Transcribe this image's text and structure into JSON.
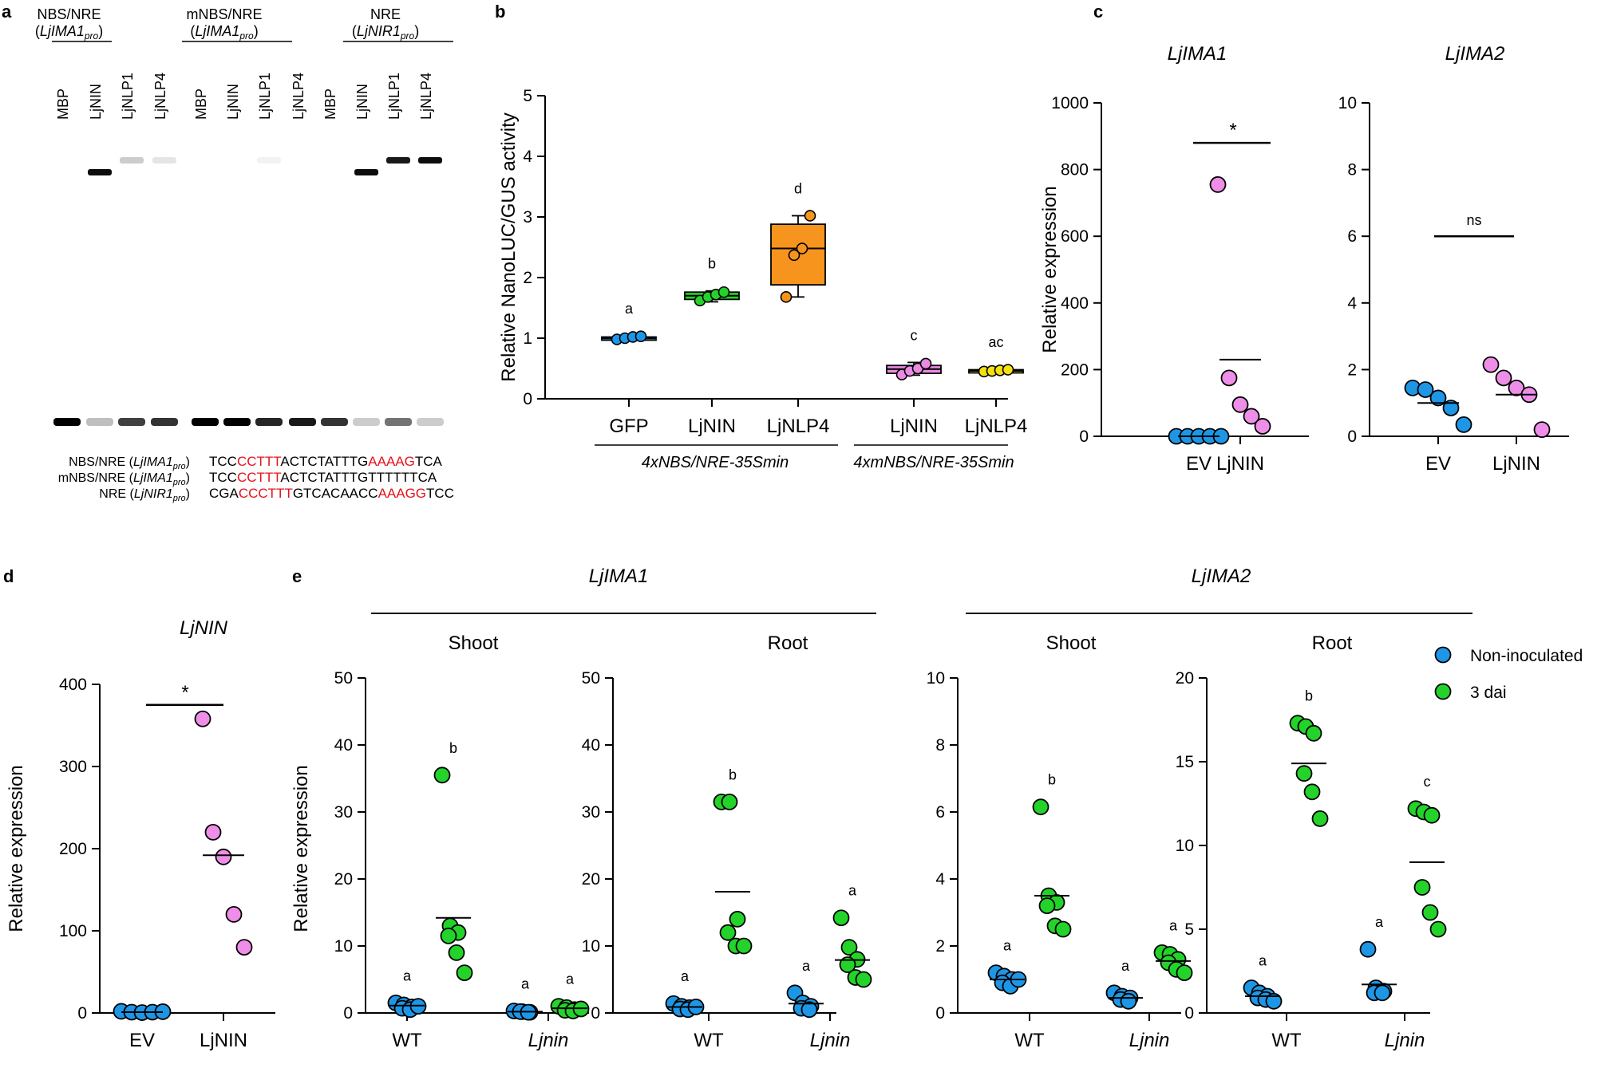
{
  "colors": {
    "noninoc": "#1e96e6",
    "dai": "#24d32a",
    "gfp": "#1e96e6",
    "ljnin": "#24d32a",
    "ljnlp4": "#f7941d",
    "m_ljnin": "#ea8ae3",
    "m_ljnlp4": "#f5e10f",
    "ev": "#1e96e6",
    "lj": "#ef8ee8",
    "red": "#e5131b"
  },
  "panel_a": {
    "letter": "a",
    "groups": [
      {
        "name": "NBS/NRE",
        "gene": "LjIMA1",
        "sub": "pro",
        "lanes": [
          "MBP",
          "LjNIN",
          "LjNLP1",
          "LjNLP4"
        ]
      },
      {
        "name": "mNBS/NRE",
        "gene": "LjIMA1",
        "sub": "pro",
        "lanes": [
          "MBP",
          "LjNIN",
          "LjNLP1",
          "LjNLP4"
        ]
      },
      {
        "name": "NRE",
        "gene": "LjNIR1",
        "sub": "pro",
        "lanes": [
          "MBP",
          "LjNIN",
          "LjNLP1",
          "LjNLP4"
        ]
      }
    ],
    "free_probe": [
      1.0,
      0.25,
      0.75,
      0.8,
      1.0,
      1.0,
      0.85,
      0.9,
      0.8,
      0.2,
      0.55,
      0.2
    ],
    "shift": [
      0,
      0.95,
      0.2,
      0.1,
      0,
      0,
      0.05,
      0,
      0,
      0.95,
      0.9,
      0.95
    ],
    "sequences": [
      {
        "label": "NBS/NRE",
        "gene": "LjIMA1",
        "sub": "pro",
        "parts": [
          [
            "TCC",
            false
          ],
          [
            "CCTTT",
            true
          ],
          [
            "ACTCTATTTG",
            false
          ],
          [
            "AAAAG",
            true
          ],
          [
            "TCA",
            false
          ]
        ]
      },
      {
        "label": "mNBS/NRE",
        "gene": "LjIMA1",
        "sub": "pro",
        "parts": [
          [
            "TCC",
            false
          ],
          [
            "CCTTT",
            true
          ],
          [
            "ACTCTATTTGTTTTTTCA",
            false
          ]
        ]
      },
      {
        "label": "NRE",
        "gene": "LjNIR1",
        "sub": "pro",
        "parts": [
          [
            "CGA",
            false
          ],
          [
            "CCCTTT",
            true
          ],
          [
            "GTCACAACC",
            false
          ],
          [
            "AAAGG",
            true
          ],
          [
            "TCC",
            false
          ]
        ]
      }
    ]
  },
  "chart_data": [
    {
      "id": "b",
      "type": "box",
      "letter": "b",
      "ylabel": "Relative NanoLUC/GUS activity",
      "ylim": [
        0,
        5
      ],
      "yticks": [
        "0",
        "1",
        "2",
        "3",
        "4",
        "5"
      ],
      "groups": [
        {
          "category": "GFP",
          "letter": "a",
          "points": [
            0.98,
            1.0,
            1.02,
            1.03
          ],
          "q1": 0.98,
          "median": 1.0,
          "q3": 1.02,
          "min": 0.97,
          "max": 1.04,
          "color_key": "gfp"
        },
        {
          "category": "LjNIN",
          "letter": "b",
          "points": [
            1.62,
            1.68,
            1.72,
            1.76
          ],
          "q1": 1.64,
          "median": 1.7,
          "q3": 1.76,
          "min": 1.6,
          "max": 1.78,
          "color_key": "ljnin"
        },
        {
          "category": "LjNLP4",
          "letter": "d",
          "points": [
            1.68,
            2.37,
            2.48,
            3.02
          ],
          "q1": 1.88,
          "median": 2.48,
          "q3": 2.88,
          "min": 1.68,
          "max": 3.02,
          "color_key": "ljnlp4"
        },
        {
          "category": "LjNIN",
          "letter": "c",
          "points": [
            0.4,
            0.46,
            0.5,
            0.58
          ],
          "q1": 0.42,
          "median": 0.49,
          "q3": 0.55,
          "min": 0.39,
          "max": 0.6,
          "color_key": "m_ljnin"
        },
        {
          "category": "LjNLP4",
          "letter": "ac",
          "points": [
            0.45,
            0.46,
            0.47,
            0.48
          ],
          "q1": 0.45,
          "median": 0.46,
          "q3": 0.48,
          "min": 0.44,
          "max": 0.49,
          "color_key": "m_ljnlp4"
        }
      ],
      "constructs": [
        {
          "label": "4xNBS/NRE-35Smin",
          "groups": [
            0,
            2
          ]
        },
        {
          "label": "4xmNBS/NRE-35Smin",
          "groups": [
            3,
            4
          ]
        }
      ]
    },
    {
      "id": "c1",
      "type": "scatter",
      "letter": "c",
      "title": "LjIMA1",
      "ylabel": "Relative expression",
      "ylim": [
        0,
        1000
      ],
      "yticks": [
        "0",
        "200",
        "400",
        "600",
        "800",
        "1000"
      ],
      "groups": [
        {
          "category": "EV",
          "points": [
            0,
            0,
            0,
            0,
            0
          ],
          "mean": 0,
          "color_key": "ev"
        },
        {
          "category": "LjNIN",
          "points": [
            755,
            175,
            95,
            60,
            30
          ],
          "mean": 230,
          "color_key": "lj"
        }
      ],
      "significance": "*"
    },
    {
      "id": "c2",
      "type": "scatter",
      "title": "LjIMA2",
      "ylim": [
        0,
        10
      ],
      "yticks": [
        "0",
        "2",
        "4",
        "6",
        "8",
        "10"
      ],
      "groups": [
        {
          "category": "EV",
          "points": [
            1.45,
            1.4,
            1.15,
            0.85,
            0.35
          ],
          "mean": 1.0,
          "color_key": "ev"
        },
        {
          "category": "LjNIN",
          "points": [
            2.15,
            1.75,
            1.45,
            1.25,
            0.2
          ],
          "mean": 1.25,
          "color_key": "lj"
        }
      ],
      "significance": "ns"
    },
    {
      "id": "d",
      "type": "scatter",
      "letter": "d",
      "title": "LjNIN",
      "ylabel": "Relative expression",
      "ylim": [
        0,
        400
      ],
      "yticks": [
        "0",
        "100",
        "200",
        "300",
        "400"
      ],
      "groups": [
        {
          "category": "EV",
          "points": [
            2,
            1,
            0.5,
            1,
            1.5
          ],
          "mean": 1,
          "color_key": "ev"
        },
        {
          "category": "LjNIN",
          "points": [
            358,
            220,
            190,
            120,
            80
          ],
          "mean": 192,
          "color_key": "lj"
        }
      ],
      "significance": "*"
    },
    {
      "id": "e1",
      "type": "scatter",
      "letter": "e",
      "subtitle": "Shoot",
      "ylabel": "Relative expression",
      "ylim": [
        0,
        50
      ],
      "yticks": [
        "0",
        "10",
        "20",
        "30",
        "40",
        "50"
      ],
      "groups": [
        {
          "category": "WT",
          "letter": "a",
          "points": [
            1.5,
            1.2,
            0.9,
            0.7,
            0.5,
            1.0
          ],
          "mean": 1.1,
          "color_key": "noninoc"
        },
        {
          "letter": "b",
          "points": [
            35.5,
            13,
            12,
            11.5,
            9,
            6
          ],
          "mean": 14.2,
          "color_key": "dai"
        },
        {
          "category": "Ljnin",
          "letter": "a",
          "points": [
            0.3,
            0.2,
            0.1,
            0.2,
            0.1
          ],
          "mean": 0.2,
          "color_key": "noninoc"
        },
        {
          "letter": "a",
          "points": [
            1,
            0.8,
            0.5,
            0.4,
            0.3,
            0.6
          ],
          "mean": 0.7,
          "color_key": "dai"
        }
      ]
    },
    {
      "id": "e2",
      "type": "scatter",
      "subtitle": "Root",
      "ylim": [
        0,
        50
      ],
      "yticks": [
        "0",
        "10",
        "20",
        "30",
        "40",
        "50"
      ],
      "groups": [
        {
          "category": "WT",
          "letter": "a",
          "points": [
            1.4,
            1.0,
            0.8,
            0.6,
            0.5,
            0.9
          ],
          "mean": 0.9,
          "color_key": "noninoc"
        },
        {
          "letter": "b",
          "points": [
            31.5,
            31.5,
            14,
            12,
            10,
            10
          ],
          "mean": 18.1,
          "color_key": "dai"
        },
        {
          "category": "Ljnin",
          "letter": "a",
          "points": [
            3.0,
            1.5,
            1.0,
            0.7,
            0.5
          ],
          "mean": 1.4,
          "color_key": "noninoc"
        },
        {
          "letter": "a",
          "points": [
            14.2,
            9.8,
            8.0,
            7.2,
            5.3,
            5.0
          ],
          "mean": 7.9,
          "color_key": "dai"
        }
      ]
    },
    {
      "id": "e3",
      "type": "scatter",
      "subtitle": "Shoot",
      "ylim": [
        0,
        10
      ],
      "yticks": [
        "0",
        "2",
        "4",
        "6",
        "8",
        "10"
      ],
      "groups": [
        {
          "category": "WT",
          "letter": "a",
          "points": [
            1.2,
            1.1,
            1.0,
            0.9,
            0.8,
            1.0
          ],
          "mean": 1.0,
          "color_key": "noninoc"
        },
        {
          "letter": "b",
          "points": [
            6.15,
            3.5,
            3.3,
            3.2,
            2.6,
            2.5
          ],
          "mean": 3.5,
          "color_key": "dai"
        },
        {
          "category": "Ljnin",
          "letter": "a",
          "points": [
            0.6,
            0.5,
            0.45,
            0.4,
            0.35
          ],
          "mean": 0.45,
          "color_key": "noninoc"
        },
        {
          "letter": "a",
          "points": [
            1.8,
            1.75,
            1.6,
            1.5,
            1.3,
            1.2
          ],
          "mean": 1.55,
          "color_key": "dai"
        }
      ]
    },
    {
      "id": "e4",
      "type": "scatter",
      "subtitle": "Root",
      "ylim": [
        0,
        20
      ],
      "yticks": [
        "0",
        "5",
        "10",
        "15",
        "20"
      ],
      "groups": [
        {
          "category": "WT",
          "letter": "a",
          "points": [
            1.5,
            1.2,
            1.0,
            0.9,
            0.8,
            0.7
          ],
          "mean": 1.0,
          "color_key": "noninoc"
        },
        {
          "letter": "b",
          "points": [
            17.3,
            17.1,
            16.7,
            14.3,
            13.2,
            11.6
          ],
          "mean": 14.9,
          "color_key": "dai"
        },
        {
          "category": "Ljnin",
          "letter": "a",
          "points": [
            3.8,
            1.5,
            1.3,
            1.2,
            1.2
          ],
          "mean": 1.7,
          "color_key": "noninoc"
        },
        {
          "letter": "c",
          "points": [
            12.2,
            12.0,
            11.8,
            7.5,
            6.0,
            5.0
          ],
          "mean": 9.0,
          "color_key": "dai"
        }
      ]
    }
  ],
  "panel_e": {
    "genes": [
      "LjIMA1",
      "LjIMA2"
    ],
    "legend": [
      {
        "label": "Non-inoculated",
        "color_key": "noninoc"
      },
      {
        "label": "3 dai",
        "color_key": "dai"
      }
    ]
  }
}
